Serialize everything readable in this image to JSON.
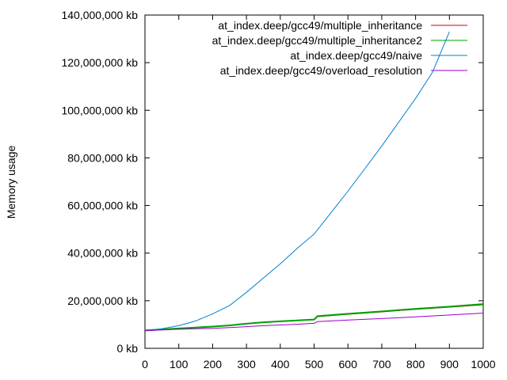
{
  "chart_data": {
    "type": "line",
    "title": "",
    "xlabel": "",
    "ylabel": "Memory usage",
    "xlim": [
      0,
      1000
    ],
    "ylim": [
      0,
      140000000
    ],
    "x_ticks": [
      "0",
      "100",
      "200",
      "300",
      "400",
      "500",
      "600",
      "700",
      "800",
      "900",
      "1000"
    ],
    "y_ticks": [
      "0 kb",
      "20,000,000 kb",
      "40,000,000 kb",
      "60,000,000 kb",
      "80,000,000 kb",
      "100,000,000 kb",
      "120,000,000 kb",
      "140,000,000 kb"
    ],
    "grid": false,
    "legend_position": "top-right",
    "series": [
      {
        "name": "at_index.deep/gcc49/multiple_inheritance",
        "color": "#cc0000",
        "x": [
          0,
          50,
          100,
          150,
          200,
          250,
          300,
          350,
          400,
          450,
          500,
          510,
          600,
          700,
          800,
          900,
          1000
        ],
        "y": [
          7500000,
          7900000,
          8300000,
          8700000,
          9100000,
          9600000,
          10300000,
          10900000,
          11300000,
          11700000,
          12000000,
          13300000,
          14300000,
          15300000,
          16400000,
          17300000,
          18300000
        ]
      },
      {
        "name": "at_index.deep/gcc49/multiple_inheritance2",
        "color": "#00a000",
        "x": [
          0,
          50,
          100,
          150,
          200,
          250,
          300,
          350,
          400,
          450,
          500,
          510,
          600,
          700,
          800,
          900,
          1000
        ],
        "y": [
          7500000,
          7950000,
          8350000,
          8750000,
          9150000,
          9650000,
          10350000,
          10950000,
          11350000,
          11750000,
          12100000,
          13500000,
          14500000,
          15500000,
          16600000,
          17500000,
          18600000
        ]
      },
      {
        "name": "at_index.deep/gcc49/naive",
        "color": "#0080cc",
        "x": [
          0,
          50,
          100,
          150,
          200,
          250,
          300,
          350,
          400,
          450,
          500,
          550,
          600,
          650,
          700,
          750,
          800,
          850,
          900
        ],
        "y": [
          7500000,
          8200000,
          9500000,
          11500000,
          14500000,
          18000000,
          23500000,
          29500000,
          35500000,
          42000000,
          48000000,
          57000000,
          66000000,
          75500000,
          85000000,
          95000000,
          105000000,
          116000000,
          133000000
        ]
      },
      {
        "name": "at_index.deep/gcc49/overload_resolution",
        "color": "#9900cc",
        "x": [
          0,
          50,
          100,
          150,
          200,
          250,
          300,
          350,
          400,
          450,
          500,
          510,
          600,
          700,
          800,
          900,
          1000
        ],
        "y": [
          7400000,
          7700000,
          8000000,
          8200000,
          8400000,
          8700000,
          9100000,
          9500000,
          9800000,
          10100000,
          10500000,
          11200000,
          11900000,
          12500000,
          13200000,
          14000000,
          14800000
        ]
      }
    ]
  }
}
